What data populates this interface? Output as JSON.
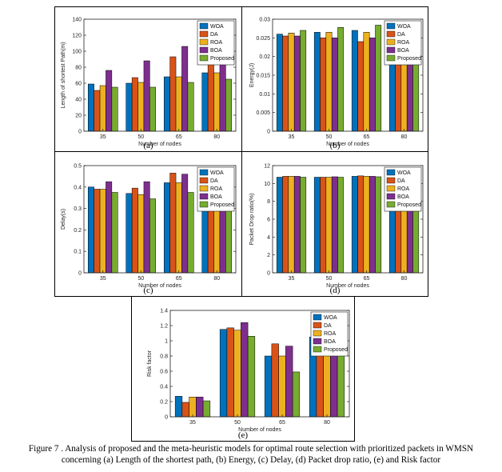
{
  "legend_colors": [
    "#0072BD",
    "#D95319",
    "#EDB120",
    "#7E2F8E",
    "#77AC30"
  ],
  "caption": {
    "line1": "Figure 7 . Analysis of proposed and the meta-heuristic models for optimal route selection with prioritized packets in WMSN",
    "line2": "concerning (a) Length of the shortest path, (b) Energy, (c) Delay, (d) Packet drop ratio, (e) and Risk factor"
  },
  "chart_data": [
    {
      "panel": "(a)",
      "type": "bar",
      "categories": [
        "35",
        "50",
        "65",
        "80"
      ],
      "xlabel": "Number of nodes",
      "ylabel": "Length of shortest Path(m)",
      "ylim": [
        0,
        140
      ],
      "yticks": [
        "0",
        "20",
        "40",
        "60",
        "80",
        "100",
        "120",
        "140"
      ],
      "legend_position": "top-right",
      "series": [
        {
          "name": "WOA",
          "values": [
            59,
            60,
            68,
            73
          ]
        },
        {
          "name": "DA",
          "values": [
            51,
            67,
            93,
            113
          ]
        },
        {
          "name": "ROA",
          "values": [
            57,
            61,
            68,
            73
          ]
        },
        {
          "name": "BOA",
          "values": [
            76,
            88,
            106,
            126
          ]
        },
        {
          "name": "Proposed",
          "values": [
            55,
            55,
            61,
            65
          ]
        }
      ]
    },
    {
      "panel": "(b)",
      "type": "bar",
      "categories": [
        "35",
        "50",
        "65",
        "80"
      ],
      "xlabel": "Number of nodes",
      "ylabel": "Energy(J)",
      "ylim": [
        0,
        0.03
      ],
      "yticks": [
        "0",
        "0.005",
        "0.01",
        "0.015",
        "0.02",
        "0.025",
        "0.03"
      ],
      "legend_position": "top-right",
      "series": [
        {
          "name": "WOA",
          "values": [
            0.026,
            0.0265,
            0.027,
            0.0275
          ]
        },
        {
          "name": "DA",
          "values": [
            0.0255,
            0.025,
            0.024,
            0.024
          ]
        },
        {
          "name": "ROA",
          "values": [
            0.0263,
            0.0265,
            0.0265,
            0.027
          ]
        },
        {
          "name": "BOA",
          "values": [
            0.0255,
            0.025,
            0.025,
            0.025
          ]
        },
        {
          "name": "Proposed",
          "values": [
            0.027,
            0.0278,
            0.0284,
            0.029
          ]
        }
      ]
    },
    {
      "panel": "(c)",
      "type": "bar",
      "categories": [
        "35",
        "50",
        "65",
        "80"
      ],
      "xlabel": "Number of nodes",
      "ylabel": "Delay(s)",
      "ylim": [
        0,
        0.5
      ],
      "yticks": [
        "0",
        "0.1",
        "0.2",
        "0.3",
        "0.4",
        "0.5"
      ],
      "legend_position": "top-right",
      "series": [
        {
          "name": "WOA",
          "values": [
            0.4,
            0.37,
            0.42,
            0.4
          ]
        },
        {
          "name": "DA",
          "values": [
            0.39,
            0.395,
            0.465,
            0.475
          ]
        },
        {
          "name": "ROA",
          "values": [
            0.39,
            0.365,
            0.42,
            0.4
          ]
        },
        {
          "name": "BOA",
          "values": [
            0.425,
            0.425,
            0.46,
            0.47
          ]
        },
        {
          "name": "Proposed",
          "values": [
            0.375,
            0.345,
            0.375,
            0.36
          ]
        }
      ]
    },
    {
      "panel": "(d)",
      "type": "bar",
      "categories": [
        "35",
        "50",
        "65",
        "80"
      ],
      "xlabel": "Number of nodes",
      "ylabel": "Packet Drop ratio(%)",
      "ylim": [
        0,
        12
      ],
      "yticks": [
        "0",
        "2",
        "4",
        "6",
        "8",
        "10",
        "12"
      ],
      "legend_position": "top-right",
      "series": [
        {
          "name": "WOA",
          "values": [
            10.7,
            10.7,
            10.8,
            10.8
          ]
        },
        {
          "name": "DA",
          "values": [
            10.8,
            10.7,
            10.85,
            10.9
          ]
        },
        {
          "name": "ROA",
          "values": [
            10.8,
            10.7,
            10.8,
            10.8
          ]
        },
        {
          "name": "BOA",
          "values": [
            10.8,
            10.75,
            10.8,
            10.75
          ]
        },
        {
          "name": "Proposed",
          "values": [
            10.7,
            10.7,
            10.75,
            10.7
          ]
        }
      ]
    },
    {
      "panel": "(e)",
      "type": "bar",
      "categories": [
        "35",
        "50",
        "65",
        "80"
      ],
      "xlabel": "Number of nodes",
      "ylabel": "Risk factor",
      "ylim": [
        0,
        1.4
      ],
      "yticks": [
        "0",
        "0.2",
        "0.4",
        "0.6",
        "0.8",
        "1",
        "1.2",
        "1.4"
      ],
      "legend_position": "top-right",
      "series": [
        {
          "name": "WOA",
          "values": [
            0.27,
            1.15,
            0.8,
            1.05
          ]
        },
        {
          "name": "DA",
          "values": [
            0.19,
            1.17,
            0.96,
            1.25
          ]
        },
        {
          "name": "ROA",
          "values": [
            0.26,
            1.14,
            0.8,
            1.05
          ]
        },
        {
          "name": "BOA",
          "values": [
            0.26,
            1.24,
            0.93,
            1.25
          ]
        },
        {
          "name": "Proposed",
          "values": [
            0.21,
            1.06,
            0.59,
            0.92
          ]
        }
      ]
    }
  ]
}
